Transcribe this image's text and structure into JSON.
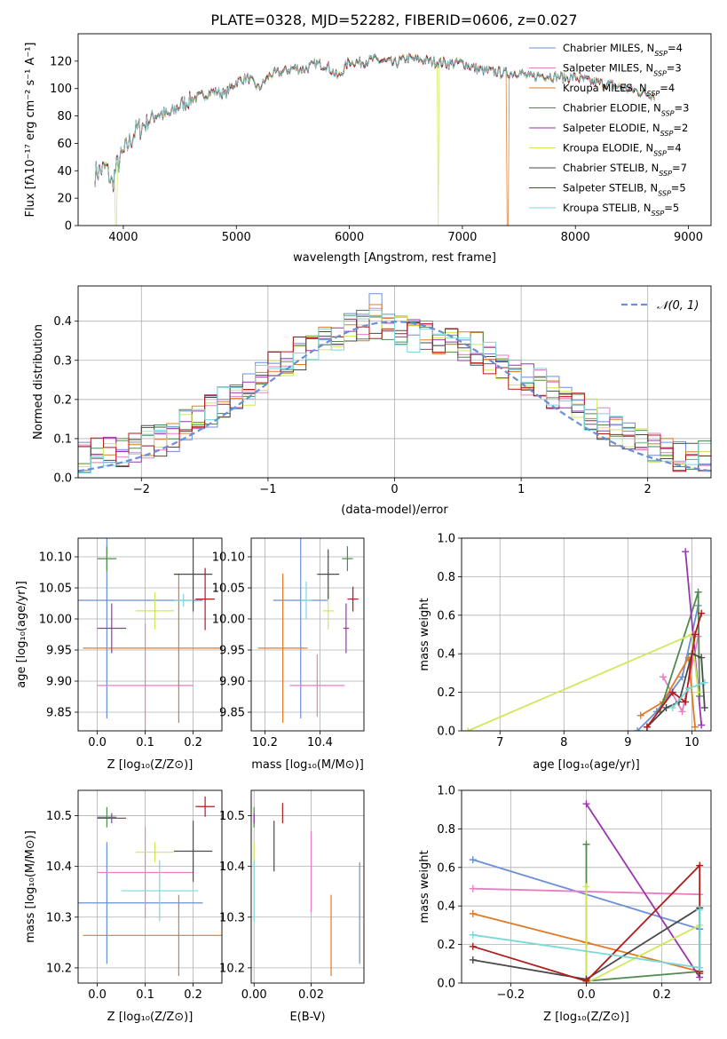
{
  "figure": {
    "title": "PLATE=0328, MJD=52282, FIBERID=0606, z=0.027"
  },
  "palette": [
    "#6a8fd8",
    "#e87ec4",
    "#e07a27",
    "#4f8a4f",
    "#9a35b0",
    "#cfe85a",
    "#4a4a4a",
    "#b01d1d",
    "#7ad8d8"
  ],
  "chart_data": [
    {
      "id": "spectrum",
      "type": "line",
      "title": "PLATE=0328, MJD=52282, FIBERID=0606, z=0.027",
      "xlabel": "wavelength [Angstrom, rest frame]",
      "ylabel": "Flux [fλ10⁻¹⁷ erg cm⁻² s⁻¹ A⁻¹]",
      "xlim": [
        3600,
        9200
      ],
      "ylim": [
        0,
        140
      ],
      "xticks": [
        4000,
        5000,
        6000,
        7000,
        8000,
        9000
      ],
      "yticks": [
        0,
        20,
        40,
        60,
        80,
        100,
        120
      ],
      "grid": false,
      "legend": "top-right",
      "series": [
        {
          "name": "Chabrier MILES, N_SSP=4",
          "color_index": 0
        },
        {
          "name": "Salpeter MILES, N_SSP=3",
          "color_index": 1
        },
        {
          "name": "Kroupa MILES, N_SSP=4",
          "color_index": 2
        },
        {
          "name": "Chabrier ELODIE, N_SSP=3",
          "color_index": 3
        },
        {
          "name": "Salpeter ELODIE, N_SSP=2",
          "color_index": 4
        },
        {
          "name": "Kroupa ELODIE, N_SSP=4",
          "color_index": 5
        },
        {
          "name": "Chabrier STELIB, N_SSP=7",
          "color_index": 6
        },
        {
          "name": "Salpeter STELIB, N_SSP=5",
          "color_index": 7
        },
        {
          "name": "Kroupa STELIB, N_SSP=5",
          "color_index": 8
        }
      ],
      "envelope": {
        "x": [
          3750,
          3850,
          3900,
          3950,
          4000,
          4100,
          4200,
          4300,
          4400,
          4500,
          4600,
          4700,
          4800,
          4900,
          5000,
          5100,
          5200,
          5300,
          5400,
          5500,
          5600,
          5700,
          5800,
          5900,
          6000,
          6100,
          6200,
          6300,
          6400,
          6500,
          6600,
          6700,
          6800,
          6900,
          7000,
          7100,
          7200,
          7300,
          7400,
          7500,
          7600,
          7700,
          7800,
          7900,
          8000,
          8100,
          8200,
          8300,
          8400,
          8500,
          8600,
          8700
        ],
        "y": [
          38,
          42,
          30,
          45,
          52,
          68,
          75,
          82,
          80,
          88,
          92,
          95,
          98,
          96,
          105,
          108,
          100,
          110,
          112,
          115,
          114,
          118,
          117,
          108,
          120,
          119,
          121,
          120,
          118,
          122,
          121,
          120,
          119,
          118,
          119,
          115,
          113,
          112,
          111,
          112,
          108,
          110,
          109,
          108,
          108,
          106,
          104,
          103,
          101,
          99,
          97,
          95
        ]
      },
      "dips": [
        {
          "x": 3935,
          "series_index": 5,
          "y": 0
        },
        {
          "x": 6790,
          "series_index": 5,
          "y": 0
        },
        {
          "x": 7400,
          "series_index": 2,
          "y": 0
        }
      ]
    },
    {
      "id": "residuals",
      "type": "line",
      "xlabel": "(data-model)/error",
      "ylabel": "Normed distribution",
      "xlim": [
        -2.5,
        2.5
      ],
      "ylim": [
        0,
        0.49
      ],
      "xticks": [
        -2,
        -1,
        0,
        1,
        2
      ],
      "yticks": [
        0.0,
        0.1,
        0.2,
        0.3,
        0.4
      ],
      "grid": true,
      "legend": "top-right",
      "reference": {
        "name": "𝒩(0, 1)",
        "mean": 0,
        "sigma": 1,
        "color": "#6a8fd8"
      },
      "bins": [
        -2.5,
        -2.4,
        -2.3,
        -2.2,
        -2.1,
        -2.0,
        -1.9,
        -1.8,
        -1.7,
        -1.6,
        -1.5,
        -1.4,
        -1.3,
        -1.2,
        -1.1,
        -1.0,
        -0.9,
        -0.8,
        -0.7,
        -0.6,
        -0.5,
        -0.4,
        -0.3,
        -0.2,
        -0.1,
        0.0,
        0.1,
        0.2,
        0.3,
        0.4,
        0.5,
        0.6,
        0.7,
        0.8,
        0.9,
        1.0,
        1.1,
        1.2,
        1.3,
        1.4,
        1.5,
        1.6,
        1.7,
        1.8,
        1.9,
        2.0,
        2.1,
        2.2,
        2.3,
        2.4,
        2.5
      ],
      "base_hist": [
        0.05,
        0.06,
        0.06,
        0.07,
        0.08,
        0.09,
        0.1,
        0.11,
        0.13,
        0.15,
        0.17,
        0.19,
        0.21,
        0.23,
        0.25,
        0.28,
        0.3,
        0.32,
        0.34,
        0.35,
        0.37,
        0.38,
        0.39,
        0.4,
        0.38,
        0.37,
        0.36,
        0.36,
        0.35,
        0.35,
        0.34,
        0.33,
        0.31,
        0.29,
        0.27,
        0.25,
        0.24,
        0.22,
        0.2,
        0.18,
        0.16,
        0.14,
        0.12,
        0.11,
        0.09,
        0.08,
        0.07,
        0.06,
        0.05,
        0.05
      ],
      "peak_series_index": 0,
      "peak_value": 0.47
    },
    {
      "id": "age-vs-Z",
      "type": "scatter",
      "xlabel": "Z [log₁₀(Z/Z⊙)]",
      "ylabel": "age  [log₁₀(age/yr)]",
      "xlim": [
        -0.04,
        0.26
      ],
      "ylim": [
        9.82,
        10.13
      ],
      "xticks": [
        0.0,
        0.1,
        0.2
      ],
      "yticks": [
        9.85,
        9.9,
        9.95,
        10.0,
        10.05,
        10.1
      ],
      "grid": true,
      "points": [
        {
          "series_index": 0,
          "x": 0.02,
          "xerr": 0.2,
          "y": 10.03,
          "yerr": 0.19
        },
        {
          "series_index": 1,
          "x": 0.1,
          "xerr": 0.1,
          "y": 9.893,
          "yerr": 0.1
        },
        {
          "series_index": 2,
          "x": 0.17,
          "xerr": 0.2,
          "y": 9.953,
          "yerr": 0.12
        },
        {
          "series_index": 3,
          "x": 0.02,
          "xerr": 0.02,
          "y": 10.097,
          "yerr": 0.02
        },
        {
          "series_index": 4,
          "x": 0.03,
          "xerr": 0.03,
          "y": 9.985,
          "yerr": 0.04
        },
        {
          "series_index": 5,
          "x": 0.12,
          "xerr": 0.04,
          "y": 10.013,
          "yerr": 0.03
        },
        {
          "series_index": 6,
          "x": 0.2,
          "xerr": 0.04,
          "y": 10.072,
          "yerr": 0.06
        },
        {
          "series_index": 7,
          "x": 0.225,
          "xerr": 0.02,
          "y": 10.032,
          "yerr": 0.05
        },
        {
          "series_index": 8,
          "x": 0.18,
          "xerr": 0.02,
          "y": 10.03,
          "yerr": 0.01
        }
      ]
    },
    {
      "id": "age-vs-mass",
      "type": "scatter",
      "xlabel": "mass [log₁₀(M/M⊙)]",
      "ylabel": "",
      "xlim": [
        10.15,
        10.56
      ],
      "ylim": [
        9.82,
        10.13
      ],
      "xticks": [
        10.2,
        10.4
      ],
      "yticks": [
        9.85,
        9.9,
        9.95,
        10.0,
        10.05,
        10.1
      ],
      "grid": true,
      "points": [
        {
          "series_index": 0,
          "x": 10.33,
          "xerr": 0.1,
          "y": 10.03,
          "yerr": 0.19
        },
        {
          "series_index": 1,
          "x": 10.39,
          "xerr": 0.1,
          "y": 9.893,
          "yerr": 0.05
        },
        {
          "series_index": 2,
          "x": 10.265,
          "xerr": 0.09,
          "y": 9.953,
          "yerr": 0.12
        },
        {
          "series_index": 3,
          "x": 10.5,
          "xerr": 0.02,
          "y": 10.097,
          "yerr": 0.02
        },
        {
          "series_index": 4,
          "x": 10.495,
          "xerr": 0.01,
          "y": 9.985,
          "yerr": 0.04
        },
        {
          "series_index": 5,
          "x": 10.43,
          "xerr": 0.02,
          "y": 10.013,
          "yerr": 0.03
        },
        {
          "series_index": 6,
          "x": 10.43,
          "xerr": 0.04,
          "y": 10.072,
          "yerr": 0.04
        },
        {
          "series_index": 7,
          "x": 10.52,
          "xerr": 0.02,
          "y": 10.032,
          "yerr": 0.02
        },
        {
          "series_index": 8,
          "x": 10.35,
          "xerr": 0.02,
          "y": 10.03,
          "yerr": 0.03
        }
      ]
    },
    {
      "id": "weight-vs-age",
      "type": "line",
      "xlabel": "age  [log₁₀(age/yr)]",
      "ylabel": "mass weight",
      "xlim": [
        6.4,
        10.3
      ],
      "ylim": [
        0,
        1.0
      ],
      "xticks": [
        7,
        8,
        9,
        10
      ],
      "yticks": [
        0.0,
        0.2,
        0.4,
        0.6,
        0.8,
        1.0
      ],
      "grid": true,
      "series": [
        {
          "series_index": 0,
          "x": [
            9.15,
            9.45,
            9.85,
            10.1
          ],
          "y": [
            0.0,
            0.1,
            0.28,
            0.65
          ]
        },
        {
          "series_index": 1,
          "x": [
            9.55,
            9.85,
            10.1
          ],
          "y": [
            0.28,
            0.1,
            0.49
          ]
        },
        {
          "series_index": 2,
          "x": [
            9.2,
            9.55,
            9.95,
            10.05
          ],
          "y": [
            0.08,
            0.15,
            0.38,
            0.02
          ]
        },
        {
          "series_index": 3,
          "x": [
            9.5,
            10.1,
            10.12
          ],
          "y": [
            0.1,
            0.72,
            0.18
          ]
        },
        {
          "series_index": 4,
          "x": [
            9.9,
            10.15
          ],
          "y": [
            0.93,
            0.03
          ]
        },
        {
          "series_index": 5,
          "x": [
            6.5,
            10.0,
            10.1
          ],
          "y": [
            0.0,
            0.5,
            0.2
          ]
        },
        {
          "series_index": 6,
          "x": [
            9.3,
            9.6,
            9.8,
            10.0,
            10.15,
            10.2
          ],
          "y": [
            0.02,
            0.12,
            0.15,
            0.4,
            0.38,
            0.12
          ]
        },
        {
          "series_index": 7,
          "x": [
            9.3,
            9.7,
            9.9,
            10.05,
            10.15
          ],
          "y": [
            0.02,
            0.2,
            0.15,
            0.5,
            0.61
          ]
        },
        {
          "series_index": 8,
          "x": [
            9.7,
            9.95,
            10.2
          ],
          "y": [
            0.12,
            0.22,
            0.25
          ]
        }
      ]
    },
    {
      "id": "mass-vs-Z",
      "type": "scatter",
      "xlabel": "Z [log₁₀(Z/Z⊙)]",
      "ylabel": "mass [log₁₀(M/M⊙)]",
      "xlim": [
        -0.04,
        0.26
      ],
      "ylim": [
        10.17,
        10.55
      ],
      "xticks": [
        0.0,
        0.1,
        0.2
      ],
      "yticks": [
        10.2,
        10.3,
        10.4,
        10.5
      ],
      "grid": true,
      "points": [
        {
          "series_index": 0,
          "x": 0.02,
          "xerr": 0.2,
          "y": 10.328,
          "yerr": 0.12
        },
        {
          "series_index": 1,
          "x": 0.1,
          "xerr": 0.1,
          "y": 10.388,
          "yerr": 0.09
        },
        {
          "series_index": 2,
          "x": 0.17,
          "xerr": 0.2,
          "y": 10.264,
          "yerr": 0.08
        },
        {
          "series_index": 3,
          "x": 0.02,
          "xerr": 0.02,
          "y": 10.497,
          "yerr": 0.02
        },
        {
          "series_index": 4,
          "x": 0.03,
          "xerr": 0.03,
          "y": 10.495,
          "yerr": 0.01
        },
        {
          "series_index": 5,
          "x": 0.12,
          "xerr": 0.04,
          "y": 10.428,
          "yerr": 0.02
        },
        {
          "series_index": 6,
          "x": 0.2,
          "xerr": 0.04,
          "y": 10.43,
          "yerr": 0.06
        },
        {
          "series_index": 7,
          "x": 0.225,
          "xerr": 0.02,
          "y": 10.518,
          "yerr": 0.02
        },
        {
          "series_index": 8,
          "x": 0.13,
          "xerr": 0.08,
          "y": 10.352,
          "yerr": 0.06
        }
      ]
    },
    {
      "id": "mass-vs-EBV",
      "type": "scatter",
      "xlabel": "E(B-V)",
      "ylabel": "",
      "xlim": [
        -0.001,
        0.0385
      ],
      "ylim": [
        10.17,
        10.55
      ],
      "xticks": [
        0.0,
        0.02
      ],
      "yticks": [
        10.2,
        10.3,
        10.4,
        10.5
      ],
      "grid": true,
      "points": [
        {
          "series_index": 0,
          "x": 0.037,
          "xerr": 0,
          "y": 10.308,
          "yerr": 0.1
        },
        {
          "series_index": 1,
          "x": 0.02,
          "xerr": 0,
          "y": 10.39,
          "yerr": 0.08
        },
        {
          "series_index": 2,
          "x": 0.027,
          "xerr": 0,
          "y": 10.264,
          "yerr": 0.08
        },
        {
          "series_index": 3,
          "x": 0.0,
          "xerr": 0,
          "y": 10.497,
          "yerr": 0.02
        },
        {
          "series_index": 4,
          "x": 0.0,
          "xerr": 0,
          "y": 10.495,
          "yerr": 0.01
        },
        {
          "series_index": 5,
          "x": 0.0,
          "xerr": 0,
          "y": 10.428,
          "yerr": 0.02
        },
        {
          "series_index": 6,
          "x": 0.007,
          "xerr": 0,
          "y": 10.44,
          "yerr": 0.05
        },
        {
          "series_index": 7,
          "x": 0.01,
          "xerr": 0,
          "y": 10.505,
          "yerr": 0.02
        },
        {
          "series_index": 8,
          "x": 0.0,
          "xerr": 0,
          "y": 10.352,
          "yerr": 0.06
        }
      ]
    },
    {
      "id": "weight-vs-Z",
      "type": "line",
      "xlabel": "Z [log₁₀(Z/Z⊙)]",
      "ylabel": "mass weight",
      "xlim": [
        -0.33,
        0.33
      ],
      "ylim": [
        0,
        1.0
      ],
      "xticks": [
        -0.2,
        0.0,
        0.2
      ],
      "yticks": [
        0.0,
        0.2,
        0.4,
        0.6,
        0.8,
        1.0
      ],
      "grid": true,
      "series": [
        {
          "series_index": 0,
          "x": [
            -0.3,
            0.3
          ],
          "y": [
            0.64,
            0.28
          ]
        },
        {
          "series_index": 1,
          "x": [
            -0.3,
            0.3
          ],
          "y": [
            0.49,
            0.46
          ]
        },
        {
          "series_index": 2,
          "x": [
            -0.3,
            0.0,
            0.3
          ],
          "y": [
            0.36,
            0.21,
            0.06
          ]
        },
        {
          "series_index": 3,
          "x": [
            0.0,
            0.0,
            0.3
          ],
          "y": [
            0.72,
            0.01,
            0.06
          ]
        },
        {
          "series_index": 4,
          "x": [
            0.0,
            0.3
          ],
          "y": [
            0.93,
            0.03
          ]
        },
        {
          "series_index": 5,
          "x": [
            0.0,
            0.0,
            0.3
          ],
          "y": [
            0.5,
            0.0,
            0.3
          ]
        },
        {
          "series_index": 6,
          "x": [
            -0.3,
            0.0,
            0.3,
            0.3
          ],
          "y": [
            0.12,
            0.02,
            0.39,
            0.05
          ]
        },
        {
          "series_index": 7,
          "x": [
            -0.3,
            0.0,
            0.3,
            0.3
          ],
          "y": [
            0.19,
            0.01,
            0.61,
            0.06
          ]
        },
        {
          "series_index": 8,
          "x": [
            -0.3,
            0.3,
            0.3
          ],
          "y": [
            0.25,
            0.08,
            0.38
          ]
        }
      ]
    }
  ]
}
